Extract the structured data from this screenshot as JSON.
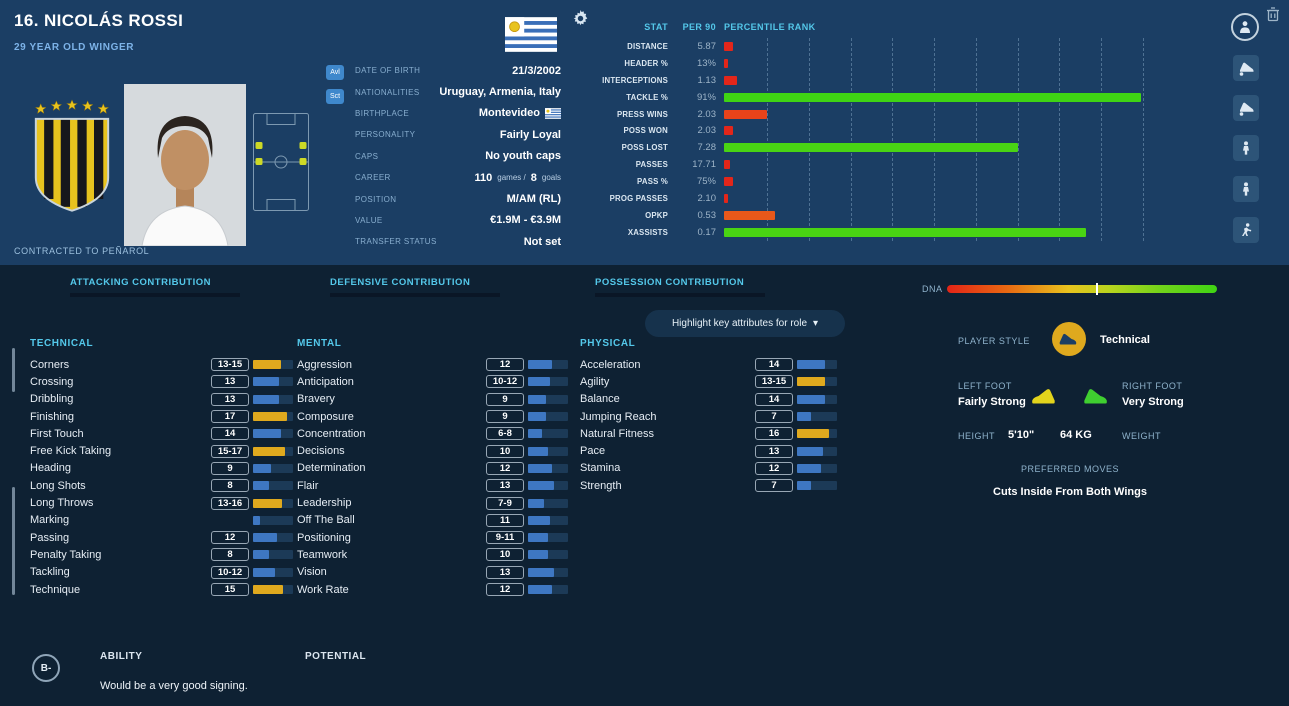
{
  "colors": {
    "accent_cyan": "#54c8ea",
    "bar_blue": "#3e77c2",
    "bar_gold": "#dfa91e",
    "bar_green": "#3fd414",
    "bar_red": "#e3261a",
    "header_bg": "#1b3e64",
    "body_bg": "#0e2133"
  },
  "icons": {
    "chevron_down": "▾"
  },
  "header": {
    "name": "16. NICOLÁS ROSSI",
    "subtitle": "29 YEAR OLD WINGER",
    "contracted": "CONTRACTED TO PEÑAROL",
    "badge1": "Avl",
    "badge2": "Sct",
    "details": {
      "dob_label": "DATE OF BIRTH",
      "dob_value": "21/3/2002",
      "nat_label": "NATIONALITIES",
      "nat_value": "Uruguay, Armenia, Italy",
      "birthplace_label": "BIRTHPLACE",
      "birthplace_value": "Montevideo",
      "personality_label": "PERSONALITY",
      "personality_value": "Fairly Loyal",
      "caps_label": "CAPS",
      "caps_value": "No youth caps",
      "career_label": "CAREER",
      "career_games": "110",
      "career_games_suffix": "games /",
      "career_goals": "8",
      "career_goals_suffix": "goals",
      "position_label": "POSITION",
      "position_value": "M/AM (RL)",
      "value_label": "VALUE",
      "value_value": "€1.9M - €3.9M",
      "transfer_label": "TRANSFER STATUS",
      "transfer_value": "Not set"
    }
  },
  "stats": {
    "col_stat": "STAT",
    "col_per90": "PER 90",
    "col_rank": "PERCENTILE RANK",
    "rows": [
      {
        "label": "DISTANCE",
        "value": "5.87",
        "pct": "2%",
        "color": "#e3261a"
      },
      {
        "label": "HEADER %",
        "value": "13%",
        "pct": "1%",
        "color": "#e3261a"
      },
      {
        "label": "INTERCEPTIONS",
        "value": "1.13",
        "pct": "3%",
        "color": "#e3261a"
      },
      {
        "label": "TACKLE %",
        "value": "91%",
        "pct": "98%",
        "color": "#3fd414"
      },
      {
        "label": "PRESS WINS",
        "value": "2.03",
        "pct": "10%",
        "color": "#e8431a"
      },
      {
        "label": "POSS WON",
        "value": "2.03",
        "pct": "2%",
        "color": "#e3261a"
      },
      {
        "label": "POSS LOST",
        "value": "7.28",
        "pct": "69%",
        "color": "#49d414"
      },
      {
        "label": "PASSES",
        "value": "17.71",
        "pct": "1.5%",
        "color": "#e3261a"
      },
      {
        "label": "PASS %",
        "value": "75%",
        "pct": "2%",
        "color": "#e3261a"
      },
      {
        "label": "PROG PASSES",
        "value": "2.10",
        "pct": "1%",
        "color": "#e3261a"
      },
      {
        "label": "OPKP",
        "value": "0.53",
        "pct": "12%",
        "color": "#e8581a"
      },
      {
        "label": "XASSISTS",
        "value": "0.17",
        "pct": "85%",
        "color": "#49d414"
      }
    ]
  },
  "tabs": {
    "attacking": "ATTACKING CONTRIBUTION",
    "defensive": "DEFENSIVE CONTRIBUTION",
    "possession": "POSSESSION CONTRIBUTION"
  },
  "dna": {
    "label": "DNA",
    "marker_pos": "55%"
  },
  "dropdown": {
    "label": "Highlight key attributes for role"
  },
  "attributes": {
    "technical": {
      "title": "TECHNICAL",
      "rows": [
        {
          "name": "Corners",
          "value": "13-15",
          "pct": "70%",
          "color": "#dfa91e"
        },
        {
          "name": "Crossing",
          "value": "13",
          "pct": "65%",
          "color": "#3e77c2"
        },
        {
          "name": "Dribbling",
          "value": "13",
          "pct": "65%",
          "color": "#3e77c2"
        },
        {
          "name": "Finishing",
          "value": "17",
          "pct": "85%",
          "color": "#dfa91e"
        },
        {
          "name": "First Touch",
          "value": "14",
          "pct": "70%",
          "color": "#3e77c2"
        },
        {
          "name": "Free Kick Taking",
          "value": "15-17",
          "pct": "80%",
          "color": "#dfa91e"
        },
        {
          "name": "Heading",
          "value": "9",
          "pct": "45%",
          "color": "#3e77c2"
        },
        {
          "name": "Long Shots",
          "value": "8",
          "pct": "40%",
          "color": "#3e77c2"
        },
        {
          "name": "Long Throws",
          "value": "13-16",
          "pct": "72%",
          "color": "#dfa91e"
        },
        {
          "name": "Marking",
          "value": "",
          "pct": "18%",
          "color": "#3e77c2"
        },
        {
          "name": "Passing",
          "value": "12",
          "pct": "60%",
          "color": "#3e77c2"
        },
        {
          "name": "Penalty Taking",
          "value": "8",
          "pct": "40%",
          "color": "#3e77c2"
        },
        {
          "name": "Tackling",
          "value": "10-12",
          "pct": "55%",
          "color": "#3e77c2"
        },
        {
          "name": "Technique",
          "value": "15",
          "pct": "75%",
          "color": "#dfa91e"
        }
      ]
    },
    "mental": {
      "title": "MENTAL",
      "rows": [
        {
          "name": "Aggression",
          "value": "12",
          "pct": "60%",
          "color": "#3e77c2"
        },
        {
          "name": "Anticipation",
          "value": "10-12",
          "pct": "55%",
          "color": "#3e77c2"
        },
        {
          "name": "Bravery",
          "value": "9",
          "pct": "45%",
          "color": "#3e77c2"
        },
        {
          "name": "Composure",
          "value": "9",
          "pct": "45%",
          "color": "#3e77c2"
        },
        {
          "name": "Concentration",
          "value": "6-8",
          "pct": "35%",
          "color": "#3e77c2"
        },
        {
          "name": "Decisions",
          "value": "10",
          "pct": "50%",
          "color": "#3e77c2"
        },
        {
          "name": "Determination",
          "value": "12",
          "pct": "60%",
          "color": "#3e77c2"
        },
        {
          "name": "Flair",
          "value": "13",
          "pct": "65%",
          "color": "#3e77c2"
        },
        {
          "name": "Leadership",
          "value": "7-9",
          "pct": "40%",
          "color": "#3e77c2"
        },
        {
          "name": "Off The Ball",
          "value": "11",
          "pct": "55%",
          "color": "#3e77c2"
        },
        {
          "name": "Positioning",
          "value": "9-11",
          "pct": "50%",
          "color": "#3e77c2"
        },
        {
          "name": "Teamwork",
          "value": "10",
          "pct": "50%",
          "color": "#3e77c2"
        },
        {
          "name": "Vision",
          "value": "13",
          "pct": "65%",
          "color": "#3e77c2"
        },
        {
          "name": "Work Rate",
          "value": "12",
          "pct": "60%",
          "color": "#3e77c2"
        }
      ]
    },
    "physical": {
      "title": "PHYSICAL",
      "rows": [
        {
          "name": "Acceleration",
          "value": "14",
          "pct": "70%",
          "color": "#3e77c2"
        },
        {
          "name": "Agility",
          "value": "13-15",
          "pct": "70%",
          "color": "#dfa91e"
        },
        {
          "name": "Balance",
          "value": "14",
          "pct": "70%",
          "color": "#3e77c2"
        },
        {
          "name": "Jumping Reach",
          "value": "7",
          "pct": "35%",
          "color": "#3e77c2"
        },
        {
          "name": "Natural Fitness",
          "value": "16",
          "pct": "80%",
          "color": "#dfa91e"
        },
        {
          "name": "Pace",
          "value": "13",
          "pct": "65%",
          "color": "#3e77c2"
        },
        {
          "name": "Stamina",
          "value": "12",
          "pct": "60%",
          "color": "#3e77c2"
        },
        {
          "name": "Strength",
          "value": "7",
          "pct": "35%",
          "color": "#3e77c2"
        }
      ]
    }
  },
  "panel": {
    "player_style_label": "PLAYER STYLE",
    "player_style_value": "Technical",
    "left_foot_label": "LEFT FOOT",
    "left_foot_value": "Fairly Strong",
    "right_foot_label": "RIGHT FOOT",
    "right_foot_value": "Very Strong",
    "height_label": "HEIGHT",
    "height_value": "5'10\"",
    "weight_value": "64 KG",
    "weight_label": "WEIGHT",
    "preferred_moves_label": "PREFERRED MOVES",
    "preferred_moves_value": "Cuts Inside From Both Wings"
  },
  "footer": {
    "rating_badge": "B-",
    "ability_label": "ABILITY",
    "potential_label": "POTENTIAL",
    "ability_stars": [
      {
        "bg": "radial-gradient(circle at 35% 30%, #f8e287 15%, #e0ac1c 60%, #b8860d 100%)"
      },
      {
        "bg": "radial-gradient(circle at 35% 30%, #f8e287 15%, #e0ac1c 60%, #b8860d 100%)"
      },
      {
        "bg": "radial-gradient(circle at 35% 30%, #f8e287 15%, #e0ac1c 60%, #b8860d 100%)"
      },
      {
        "bg": "linear-gradient(90deg, #e0ac1c 50%, #2c3e4e 50%)"
      },
      {
        "bg": "radial-gradient(circle at 35% 30%, #ffffff, #cfd6dc)"
      }
    ],
    "potential_stars": [
      {
        "bg": "radial-gradient(circle at 35% 30%, #f8e287 15%, #e0ac1c 60%, #b8860d 100%)"
      },
      {
        "bg": "radial-gradient(circle at 35% 30%, #f8e287 15%, #e0ac1c 60%, #b8860d 100%)"
      },
      {
        "bg": "radial-gradient(circle at 35% 30%, #f8e287 15%, #e0ac1c 60%, #b8860d 100%)"
      },
      {
        "bg": "linear-gradient(90deg, #e0ac1c 50%, #2c3e4e 50%)"
      },
      {
        "bg": "radial-gradient(circle at 35% 30%, #ffffff, #cfd6dc)"
      }
    ],
    "note": "Would be a very good signing."
  }
}
